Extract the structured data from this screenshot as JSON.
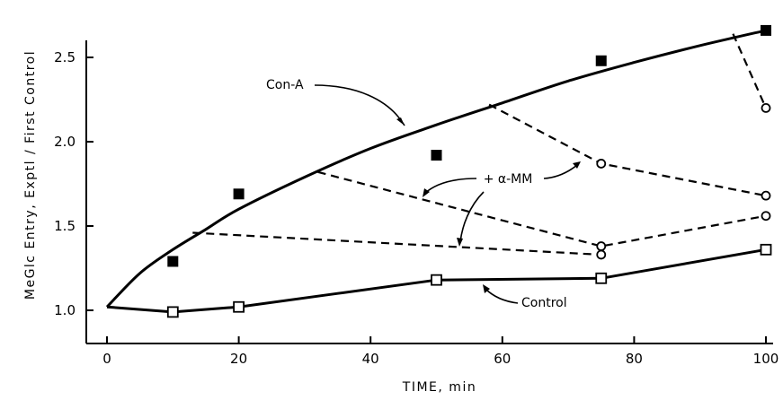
{
  "chart_data": {
    "type": "scatter",
    "xlabel": "TIME, min",
    "ylabel": "MeGlc Entry, Exptl / First Control",
    "xlim": [
      -5,
      100
    ],
    "ylim": [
      0.8,
      2.6
    ],
    "xticks": [
      0,
      20,
      40,
      60,
      80,
      100
    ],
    "yticks": [
      1.0,
      1.5,
      2.0,
      2.5
    ],
    "xtick_labels": [
      "0",
      "20",
      "40",
      "60",
      "80",
      "100"
    ],
    "ytick_labels": [
      "1.0",
      "1.5",
      "2.0",
      "2.5"
    ],
    "grid": false,
    "series": [
      {
        "name": "Con-A",
        "marker": "filled-square",
        "points": [
          [
            10,
            1.29
          ],
          [
            20,
            1.69
          ],
          [
            50,
            1.92
          ],
          [
            75,
            2.48
          ],
          [
            100,
            2.66
          ]
        ],
        "curve": [
          [
            0,
            1.02
          ],
          [
            5,
            1.22
          ],
          [
            10,
            1.36
          ],
          [
            15,
            1.48
          ],
          [
            20,
            1.6
          ],
          [
            30,
            1.79
          ],
          [
            40,
            1.96
          ],
          [
            50,
            2.1
          ],
          [
            60,
            2.23
          ],
          [
            70,
            2.36
          ],
          [
            80,
            2.47
          ],
          [
            90,
            2.57
          ],
          [
            100,
            2.66
          ]
        ]
      },
      {
        "name": "Control",
        "marker": "open-square",
        "points": [
          [
            10,
            0.99
          ],
          [
            20,
            1.02
          ],
          [
            50,
            1.18
          ],
          [
            75,
            1.19
          ],
          [
            100,
            1.36
          ]
        ],
        "curve": [
          [
            0,
            1.02
          ],
          [
            10,
            0.99
          ],
          [
            20,
            1.02
          ],
          [
            35,
            1.1
          ],
          [
            50,
            1.18
          ],
          [
            75,
            1.19
          ],
          [
            100,
            1.36
          ]
        ]
      },
      {
        "name": "+ α-MM",
        "marker": "open-circle",
        "lines": [
          [
            [
              13,
              1.46
            ],
            [
              75,
              1.33
            ]
          ],
          [
            [
              32,
              1.82
            ],
            [
              75,
              1.38
            ],
            [
              100,
              1.56
            ]
          ],
          [
            [
              58,
              2.22
            ],
            [
              75,
              1.87
            ],
            [
              100,
              1.68
            ]
          ],
          [
            [
              95,
              2.64
            ],
            [
              100,
              2.2
            ]
          ]
        ],
        "points": [
          [
            75,
            1.33
          ],
          [
            75,
            1.38
          ],
          [
            75,
            1.87
          ],
          [
            100,
            1.56
          ],
          [
            100,
            1.68
          ],
          [
            100,
            2.2
          ]
        ]
      }
    ],
    "annotations": [
      {
        "text": "Con-A",
        "points_to": "Con-A curve"
      },
      {
        "text": "+ α-MM",
        "points_to": "dashed lines"
      },
      {
        "text": "Control",
        "points_to": "Control curve"
      }
    ]
  }
}
